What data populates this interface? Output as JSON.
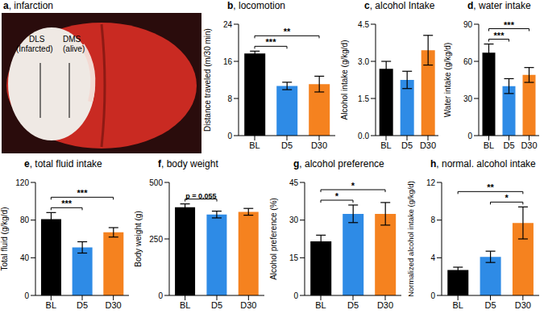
{
  "panel_a": {
    "title": "a, infarction",
    "regions": [
      {
        "name": "DLS",
        "state": "(Infarcted)"
      },
      {
        "name": "DMS",
        "state": "(alive)"
      }
    ]
  },
  "chart_data": [
    {
      "type": "bar",
      "title": "b, locomotion",
      "y_label": "Distance traveled (m/30 min)",
      "categories": [
        "BL",
        "D5",
        "D30"
      ],
      "values": [
        17.7,
        10.7,
        11.1
      ],
      "errors": [
        0.5,
        0.8,
        1.7
      ],
      "colors": [
        "#000000",
        "#2e8be6",
        "#f5821f"
      ],
      "ylim": [
        0,
        24
      ],
      "yticks": [
        0,
        8,
        16,
        24
      ],
      "annotations": [
        {
          "from": "BL",
          "to": "D5",
          "text": "***"
        },
        {
          "from": "BL",
          "to": "D30",
          "text": "**"
        }
      ]
    },
    {
      "type": "bar",
      "title": "c, alcohol Intake",
      "y_label": "Alcohol intake (g/kg/d)",
      "categories": [
        "BL",
        "D5",
        "D30"
      ],
      "values": [
        2.7,
        2.25,
        3.45
      ],
      "errors": [
        0.3,
        0.35,
        0.6
      ],
      "colors": [
        "#000000",
        "#2e8be6",
        "#f5821f"
      ],
      "ylim": [
        0,
        4.5
      ],
      "yticks": [
        {
          "value": 0,
          "label": "0.0"
        },
        {
          "value": 1.5,
          "label": "1.5"
        },
        {
          "value": 3,
          "label": "3.0"
        },
        {
          "value": 4.5,
          "label": "4.5"
        }
      ],
      "annotations": []
    },
    {
      "type": "bar",
      "title": "d, water intake",
      "y_label": "Water intake (g/kg/d)",
      "categories": [
        "BL",
        "D5",
        "D30"
      ],
      "values": [
        67,
        40,
        49
      ],
      "errors": [
        7,
        6,
        6
      ],
      "colors": [
        "#000000",
        "#2e8be6",
        "#f5821f"
      ],
      "ylim": [
        0,
        90
      ],
      "yticks": [
        0,
        30,
        60,
        90
      ],
      "annotations": [
        {
          "from": "BL",
          "to": "D5",
          "text": "***"
        },
        {
          "from": "BL",
          "to": "D30",
          "text": "***"
        }
      ]
    },
    {
      "type": "bar",
      "title": "e, total fluid intake",
      "y_label": "Total fluid (g/kg/d)",
      "categories": [
        "BL",
        "D5",
        "D30"
      ],
      "values": [
        81,
        51,
        67
      ],
      "errors": [
        7,
        6,
        5
      ],
      "colors": [
        "#000000",
        "#2e8be6",
        "#f5821f"
      ],
      "ylim": [
        0,
        120
      ],
      "yticks": [
        0,
        40,
        80,
        120
      ],
      "annotations": [
        {
          "from": "BL",
          "to": "D5",
          "text": "***"
        },
        {
          "from": "BL",
          "to": "D30",
          "text": "***"
        }
      ]
    },
    {
      "type": "bar",
      "title": "f, body weight",
      "y_label": "Body weight (g)",
      "categories": [
        "BL",
        "D5",
        "D30"
      ],
      "values": [
        390,
        358,
        370
      ],
      "errors": [
        15,
        15,
        15
      ],
      "colors": [
        "#000000",
        "#2e8be6",
        "#f5821f"
      ],
      "ylim": [
        0,
        500
      ],
      "yticks": [
        0,
        250,
        500
      ],
      "annotations": [
        {
          "from": "BL",
          "to": "D5",
          "text": "p = 0.055"
        }
      ]
    },
    {
      "type": "bar",
      "title": "g, alcohol preference",
      "y_label": "Alcohol preference (%)",
      "categories": [
        "BL",
        "D5",
        "D30"
      ],
      "values": [
        21.5,
        32.5,
        32.5
      ],
      "errors": [
        2.5,
        3.5,
        4.5
      ],
      "colors": [
        "#000000",
        "#2e8be6",
        "#f5821f"
      ],
      "ylim": [
        0,
        45
      ],
      "yticks": [
        0,
        15,
        30,
        45
      ],
      "annotations": [
        {
          "from": "BL",
          "to": "D5",
          "text": "*"
        },
        {
          "from": "BL",
          "to": "D30",
          "text": "*"
        }
      ]
    },
    {
      "type": "bar",
      "title": "h, normal. alcohol intake",
      "y_label": "Normalized alcohol intake (g/kg/d)",
      "categories": [
        "BL",
        "D5",
        "D30"
      ],
      "values": [
        2.7,
        4.1,
        7.7
      ],
      "errors": [
        0.3,
        0.6,
        1.7
      ],
      "colors": [
        "#000000",
        "#2e8be6",
        "#f5821f"
      ],
      "ylim": [
        0,
        12
      ],
      "yticks": [
        0,
        4,
        8,
        12
      ],
      "annotations": [
        {
          "from": "D5",
          "to": "D30",
          "text": "*"
        },
        {
          "from": "BL",
          "to": "D30",
          "text": "**"
        }
      ]
    }
  ]
}
